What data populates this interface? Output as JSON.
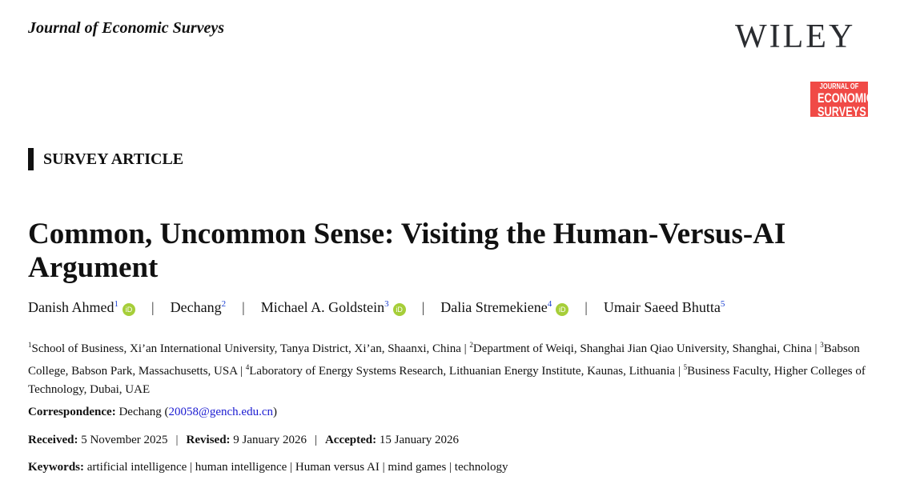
{
  "header": {
    "journal": "Journal of Economic Surveys",
    "publisher_logo": "WILEY",
    "journal_logo": [
      "JOURNAL OF",
      "ECONOMIC",
      "SURVEYS"
    ],
    "journal_logo_color": "#f04a46"
  },
  "article_type": "SURVEY ARTICLE",
  "title": "Common, Uncommon Sense: Visiting the Human-Versus-AI Argument",
  "authors": [
    {
      "name": "Danish Ahmed",
      "aff": "1",
      "orcid": true
    },
    {
      "name": "Dechang",
      "aff": "2",
      "orcid": false
    },
    {
      "name": "Michael A. Goldstein",
      "aff": "3",
      "orcid": true
    },
    {
      "name": "Dalia Stremekiene",
      "aff": "4",
      "orcid": true
    },
    {
      "name": "Umair Saeed Bhutta",
      "aff": "5",
      "orcid": false
    }
  ],
  "affiliations": [
    {
      "n": "1",
      "text": "School of Business, Xi’an International University, Tanya District, Xi’an, Shaanxi, China"
    },
    {
      "n": "2",
      "text": "Department of Weiqi, Shanghai Jian Qiao University, Shanghai, China"
    },
    {
      "n": "3",
      "text": "Babson College, Babson Park, Massachusetts, USA"
    },
    {
      "n": "4",
      "text": "Laboratory of Energy Systems Research, Lithuanian Energy Institute, Kaunas, Lithuania"
    },
    {
      "n": "5",
      "text": "Business Faculty, Higher Colleges of Technology, Dubai, UAE"
    }
  ],
  "correspondence": {
    "label": "Correspondence:",
    "name": "Dechang",
    "email": "20058@gench.edu.cn"
  },
  "dates": {
    "received_label": "Received:",
    "received": "5 November 2025",
    "revised_label": "Revised:",
    "revised": "9 January 2026",
    "accepted_label": "Accepted:",
    "accepted": "15 January 2026"
  },
  "keywords": {
    "label": "Keywords:",
    "items": [
      "artificial intelligence",
      "human intelligence",
      "Human versus AI",
      "mind games",
      "technology"
    ]
  }
}
